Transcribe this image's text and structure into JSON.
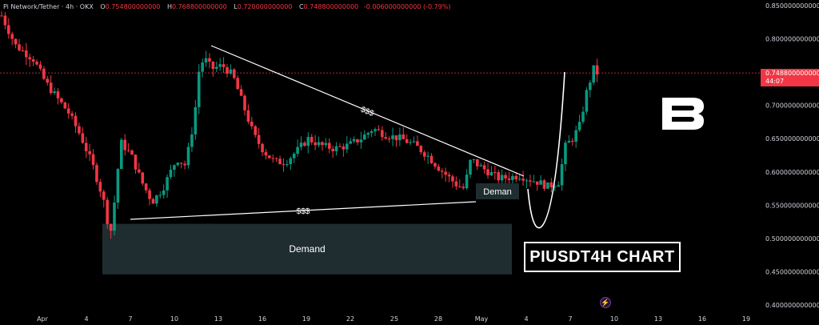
{
  "header": {
    "symbol": "Pi Network/Tether · 4h · OKX",
    "open_label": "O",
    "open_value": "0.754800000000",
    "high_label": "H",
    "high_value": "0.768800000000",
    "low_label": "L",
    "low_value": "0.720000000000",
    "close_label": "C",
    "close_value": "0.748800000000",
    "change_value": "-0.006000000000 (-0.79%)"
  },
  "price_tag": {
    "price": "0.748800000000",
    "countdown": "44:07",
    "color": "#f23645"
  },
  "chart_tag": "PIUSDT4H CHART",
  "colors": {
    "up": "#089981",
    "down": "#f23645",
    "background": "#000000",
    "demand_zone": "#1f2d30",
    "text": "#d1d4dc"
  },
  "chart_data": {
    "type": "candlestick",
    "y_axis": {
      "range": [
        0.4,
        0.85
      ],
      "ticks": [
        "0.850000000000",
        "0.800000000000",
        "0.750000000000",
        "0.700000000000",
        "0.650000000000",
        "0.600000000000",
        "0.550000000000",
        "0.500000000000",
        "0.450000000000",
        "0.400000000000"
      ]
    },
    "x_axis": {
      "ticks": [
        "Apr",
        "4",
        "7",
        "10",
        "13",
        "16",
        "19",
        "22",
        "25",
        "28",
        "May",
        "4",
        "7",
        "10",
        "13",
        "16",
        "19"
      ]
    },
    "annotations": {
      "demand_zone": {
        "label": "Demand",
        "price_top": 0.522,
        "price_bottom": 0.446
      },
      "small_demand_label": "Deman",
      "upper_trendline_label": "$$$",
      "lower_trendline_label": "$$$",
      "last_price_line": 0.7488
    },
    "path_points": [
      [
        0,
        0.835
      ],
      [
        8,
        0.79
      ],
      [
        18,
        0.77
      ],
      [
        25,
        0.735
      ],
      [
        32,
        0.71
      ],
      [
        38,
        0.69
      ],
      [
        45,
        0.655
      ],
      [
        52,
        0.61
      ],
      [
        58,
        0.56
      ],
      [
        62,
        0.505
      ],
      [
        64,
        0.545
      ],
      [
        68,
        0.645
      ],
      [
        74,
        0.625
      ],
      [
        80,
        0.585
      ],
      [
        86,
        0.555
      ],
      [
        92,
        0.575
      ],
      [
        100,
        0.62
      ],
      [
        105,
        0.61
      ],
      [
        110,
        0.68
      ],
      [
        113,
        0.76
      ],
      [
        116,
        0.77
      ],
      [
        120,
        0.755
      ],
      [
        126,
        0.76
      ],
      [
        132,
        0.745
      ],
      [
        138,
        0.7
      ],
      [
        144,
        0.655
      ],
      [
        150,
        0.63
      ],
      [
        156,
        0.615
      ],
      [
        162,
        0.615
      ],
      [
        168,
        0.63
      ],
      [
        175,
        0.65
      ],
      [
        182,
        0.64
      ],
      [
        190,
        0.635
      ],
      [
        198,
        0.64
      ],
      [
        205,
        0.65
      ],
      [
        212,
        0.665
      ],
      [
        220,
        0.655
      ],
      [
        228,
        0.65
      ],
      [
        236,
        0.64
      ],
      [
        243,
        0.625
      ],
      [
        250,
        0.605
      ],
      [
        256,
        0.59
      ],
      [
        260,
        0.58
      ],
      [
        264,
        0.575
      ],
      [
        268,
        0.62
      ],
      [
        272,
        0.61
      ],
      [
        278,
        0.6
      ],
      [
        284,
        0.59
      ],
      [
        290,
        0.592
      ],
      [
        296,
        0.595
      ],
      [
        300,
        0.59
      ],
      [
        306,
        0.585
      ],
      [
        312,
        0.578
      ],
      [
        318,
        0.585
      ],
      [
        322,
        0.64
      ],
      [
        326,
        0.65
      ],
      [
        330,
        0.67
      ],
      [
        334,
        0.72
      ],
      [
        338,
        0.755
      ],
      [
        340,
        0.7488
      ]
    ],
    "candle_count": 170,
    "last_date_index": 340
  }
}
